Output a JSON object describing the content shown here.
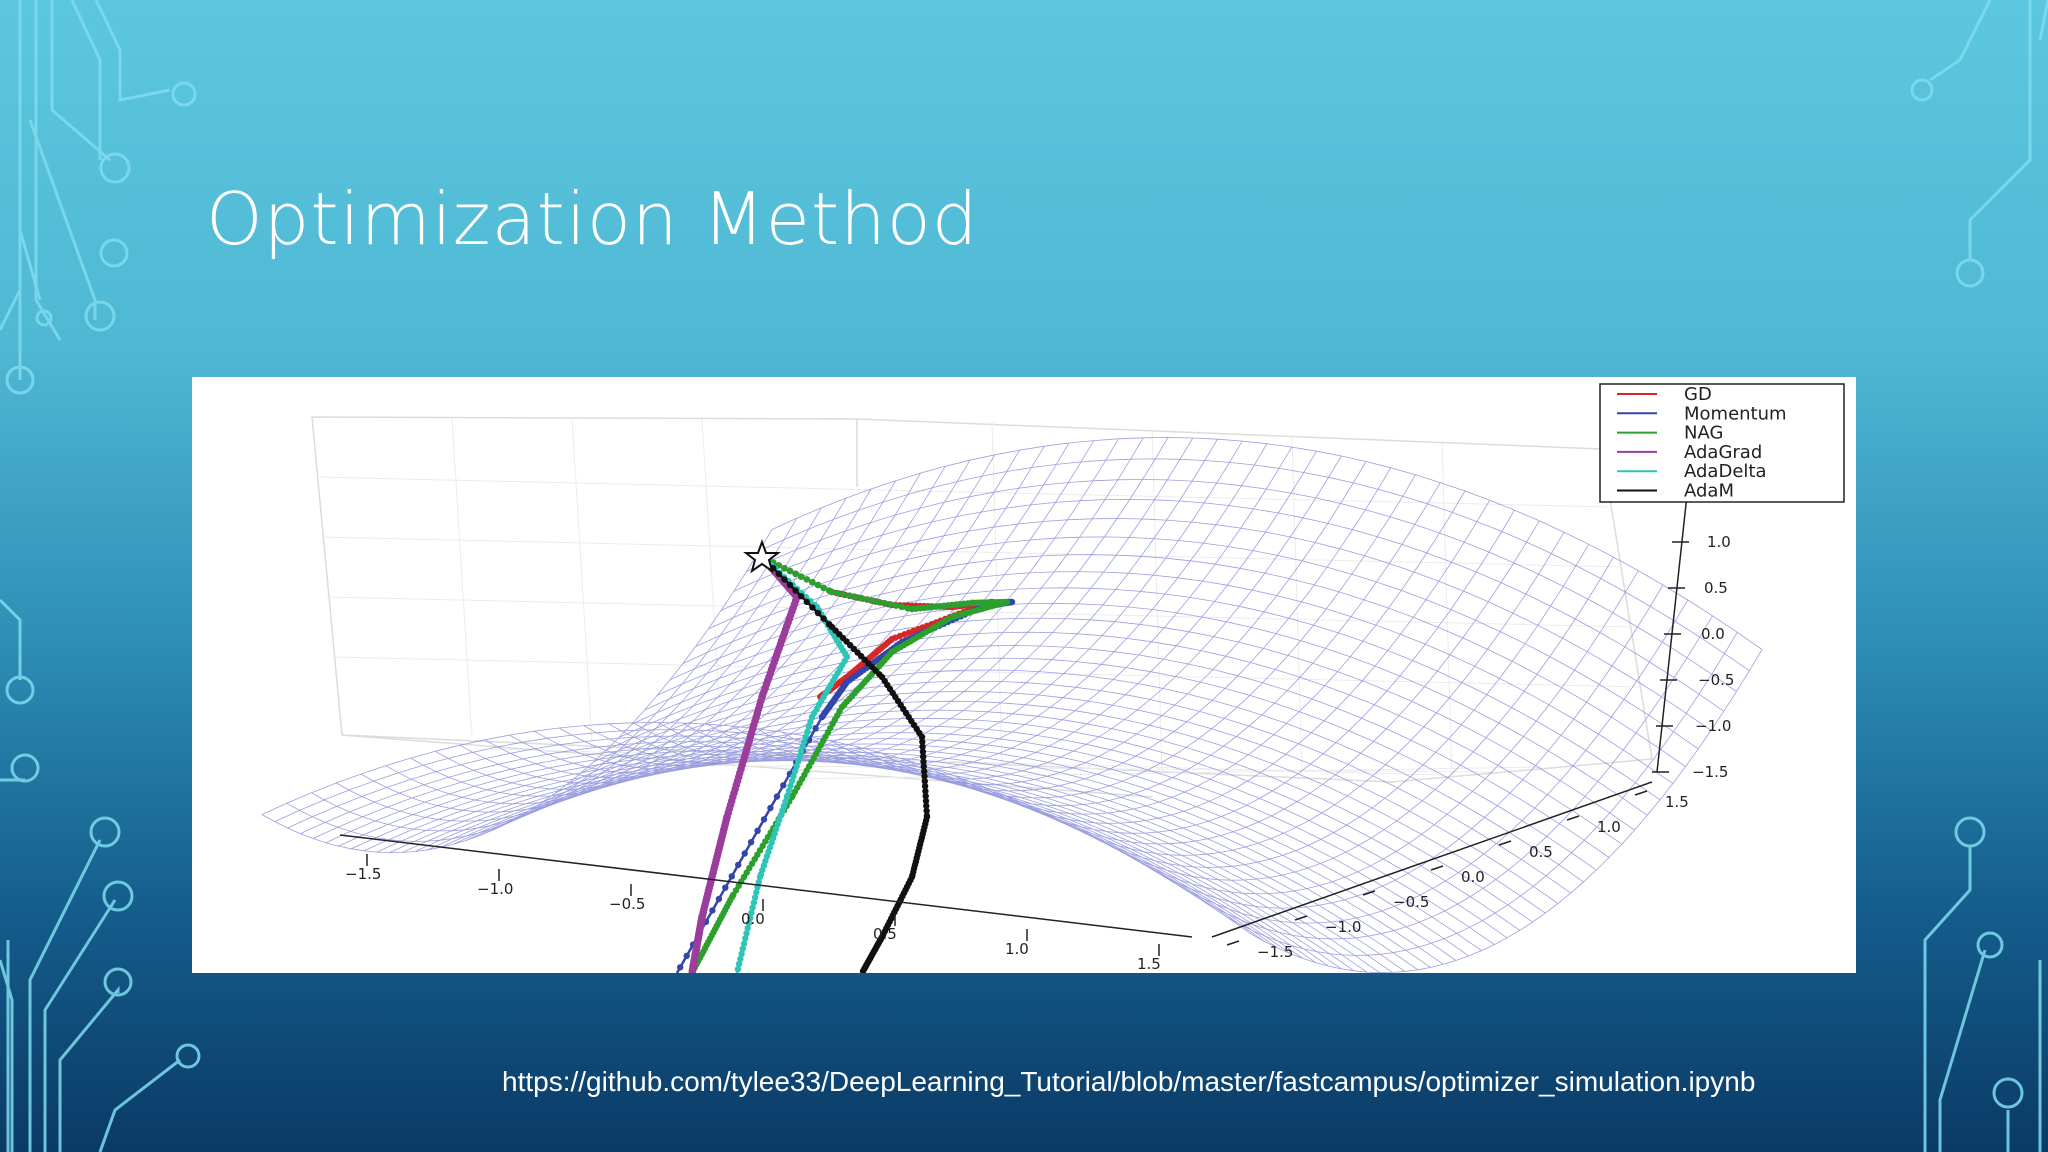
{
  "slide": {
    "title": "Optimization Method",
    "source_url": "https://github.com/tylee33/DeepLearning_Tutorial/blob/master/fastcampus/optimizer_simulation.ipynb"
  },
  "colors": {
    "background_top": "#5cc7de",
    "background_bottom": "#0b3a66",
    "decor_line": "#8fe3f5"
  },
  "chart_data": {
    "type": "surface",
    "surface": "saddle",
    "legend": [
      {
        "name": "GD",
        "color": "#d62728"
      },
      {
        "name": "Momentum",
        "color": "#3345a8"
      },
      {
        "name": "NAG",
        "color": "#2ca02c"
      },
      {
        "name": "AdaGrad",
        "color": "#9b3d9b"
      },
      {
        "name": "AdaDelta",
        "color": "#2ec4b6"
      },
      {
        "name": "AdaM",
        "color": "#111111"
      }
    ],
    "legend_position": "top-right",
    "x_ticks": [
      "−1.5",
      "−1.0",
      "−0.5",
      "0.0",
      "0.5",
      "1.0",
      "1.5"
    ],
    "y_ticks": [
      "−1.5",
      "−1.0",
      "−0.5",
      "0.0",
      "0.5",
      "1.0",
      "1.5"
    ],
    "z_ticks": [
      "−1.5",
      "−1.0",
      "−0.5",
      "0.0",
      "0.5",
      "1.0"
    ],
    "xlim": [
      -1.5,
      1.5
    ],
    "ylim": [
      -1.5,
      1.5
    ],
    "zlim": [
      -1.5,
      1.0
    ],
    "start_marker": "star"
  }
}
